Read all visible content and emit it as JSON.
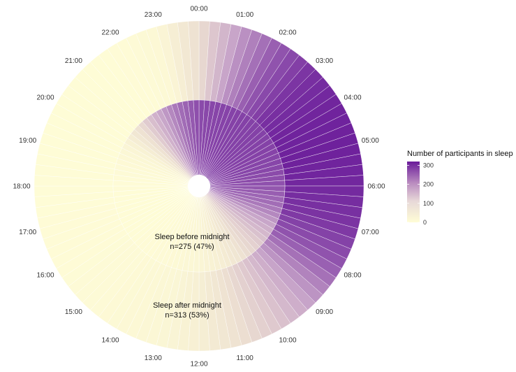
{
  "chart_data": {
    "type": "polar-heatmap",
    "angular_axis": {
      "labels": [
        "00:00",
        "01:00",
        "02:00",
        "03:00",
        "04:00",
        "05:00",
        "06:00",
        "07:00",
        "08:00",
        "09:00",
        "10:00",
        "11:00",
        "12:00",
        "13:00",
        "14:00",
        "15:00",
        "16:00",
        "17:00",
        "18:00",
        "19:00",
        "20:00",
        "21:00",
        "22:00",
        "23:00"
      ],
      "unit": "hour of day",
      "start": "00:00 at top",
      "direction": "clockwise"
    },
    "rings": [
      {
        "name": "Sleep before midnight",
        "label_line1": "Sleep before midnight",
        "label_line2": "n=275 (47%)",
        "n": 275,
        "percent": 47,
        "hours": [
          0,
          1,
          2,
          3,
          4,
          5,
          6,
          7,
          8,
          9,
          10,
          11,
          12,
          13,
          14,
          15,
          16,
          17,
          18,
          19,
          20,
          21,
          22,
          23
        ],
        "values": [
          265,
          272,
          275,
          275,
          275,
          270,
          255,
          220,
          150,
          85,
          45,
          25,
          14,
          8,
          5,
          3,
          2,
          2,
          3,
          6,
          15,
          55,
          150,
          220
        ]
      },
      {
        "name": "Sleep after midnight",
        "label_line1": "Sleep after midnight",
        "label_line2": "n=313 (53%)",
        "n": 313,
        "percent": 53,
        "hours": [
          0,
          1,
          2,
          3,
          4,
          5,
          6,
          7,
          8,
          9,
          10,
          11,
          12,
          13,
          14,
          15,
          16,
          17,
          18,
          19,
          20,
          21,
          22,
          23
        ],
        "values": [
          55,
          175,
          250,
          295,
          310,
          313,
          305,
          290,
          250,
          170,
          100,
          50,
          25,
          12,
          8,
          5,
          4,
          3,
          2,
          2,
          2,
          2,
          3,
          10
        ]
      }
    ],
    "legend": {
      "title": "Number of participants in sleep",
      "min": 0,
      "max": 320,
      "ticks": [
        0,
        100,
        200,
        300
      ],
      "tick_labels": [
        "0",
        "100",
        "200",
        "300"
      ],
      "placement": "right"
    },
    "colors": {
      "low": "#FFFDD6",
      "mid": "#C8A5C9",
      "high": "#6A1B9A",
      "segment_border": "#ffffff"
    }
  }
}
